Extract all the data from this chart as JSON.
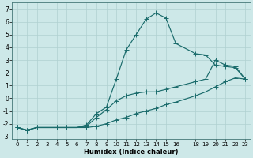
{
  "xlabel": "Humidex (Indice chaleur)",
  "background_color": "#cde8e8",
  "grid_color": "#b0d0d0",
  "line_color": "#1a6b6b",
  "xlim": [
    -0.5,
    23.5
  ],
  "ylim": [
    -3.2,
    7.5
  ],
  "xticks": [
    0,
    1,
    2,
    3,
    4,
    5,
    6,
    7,
    8,
    9,
    10,
    11,
    12,
    13,
    14,
    15,
    16,
    18,
    19,
    20,
    21,
    22,
    23
  ],
  "xtick_labels": [
    "0",
    "1",
    "2",
    "3",
    "4",
    "5",
    "6",
    "7",
    "8",
    "9",
    "10",
    "11",
    "12",
    "13",
    "14",
    "15",
    "16",
    "18",
    "19",
    "20",
    "21",
    "22",
    "23"
  ],
  "yticks": [
    -3,
    -2,
    -1,
    0,
    1,
    2,
    3,
    4,
    5,
    6,
    7
  ],
  "line1_x": [
    0,
    1,
    2,
    3,
    4,
    5,
    6,
    7,
    8,
    9,
    10,
    11,
    12,
    13,
    14,
    15,
    16,
    18,
    19,
    20,
    21,
    22,
    23
  ],
  "line1_y": [
    -2.3,
    -2.5,
    -2.3,
    -2.3,
    -2.3,
    -2.3,
    -2.3,
    -2.3,
    -2.2,
    -2.0,
    -1.7,
    -1.5,
    -1.2,
    -1.0,
    -0.8,
    -0.5,
    -0.3,
    0.2,
    0.5,
    0.9,
    1.3,
    1.6,
    1.5
  ],
  "line2_x": [
    0,
    1,
    2,
    3,
    4,
    5,
    6,
    7,
    8,
    9,
    10,
    11,
    12,
    13,
    14,
    15,
    16,
    18,
    19,
    20,
    21,
    22,
    23
  ],
  "line2_y": [
    -2.3,
    -2.5,
    -2.3,
    -2.3,
    -2.3,
    -2.3,
    -2.3,
    -2.2,
    -1.5,
    -0.9,
    -0.2,
    0.2,
    0.4,
    0.5,
    0.5,
    0.7,
    0.9,
    1.3,
    1.5,
    3.0,
    2.6,
    2.5,
    1.5
  ],
  "line3_x": [
    0,
    1,
    2,
    3,
    4,
    5,
    6,
    7,
    8,
    9,
    10,
    11,
    12,
    13,
    14,
    15,
    16,
    18,
    19,
    20,
    21,
    22,
    23
  ],
  "line3_y": [
    -2.3,
    -2.5,
    -2.3,
    -2.3,
    -2.3,
    -2.3,
    -2.3,
    -2.1,
    -1.2,
    -0.7,
    1.5,
    3.8,
    5.0,
    6.2,
    6.7,
    6.3,
    4.3,
    3.5,
    3.4,
    2.6,
    2.5,
    2.4,
    1.5
  ]
}
